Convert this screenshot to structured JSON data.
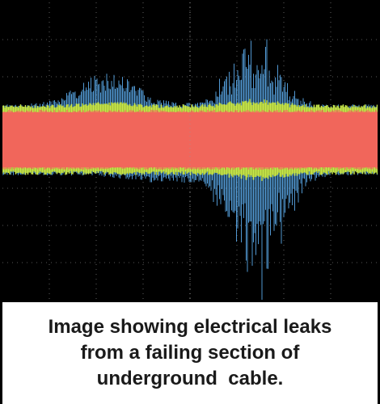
{
  "caption": {
    "lines": [
      "Image showing electrical leaks",
      "from a failing section of",
      "underground  cable."
    ]
  }
}
